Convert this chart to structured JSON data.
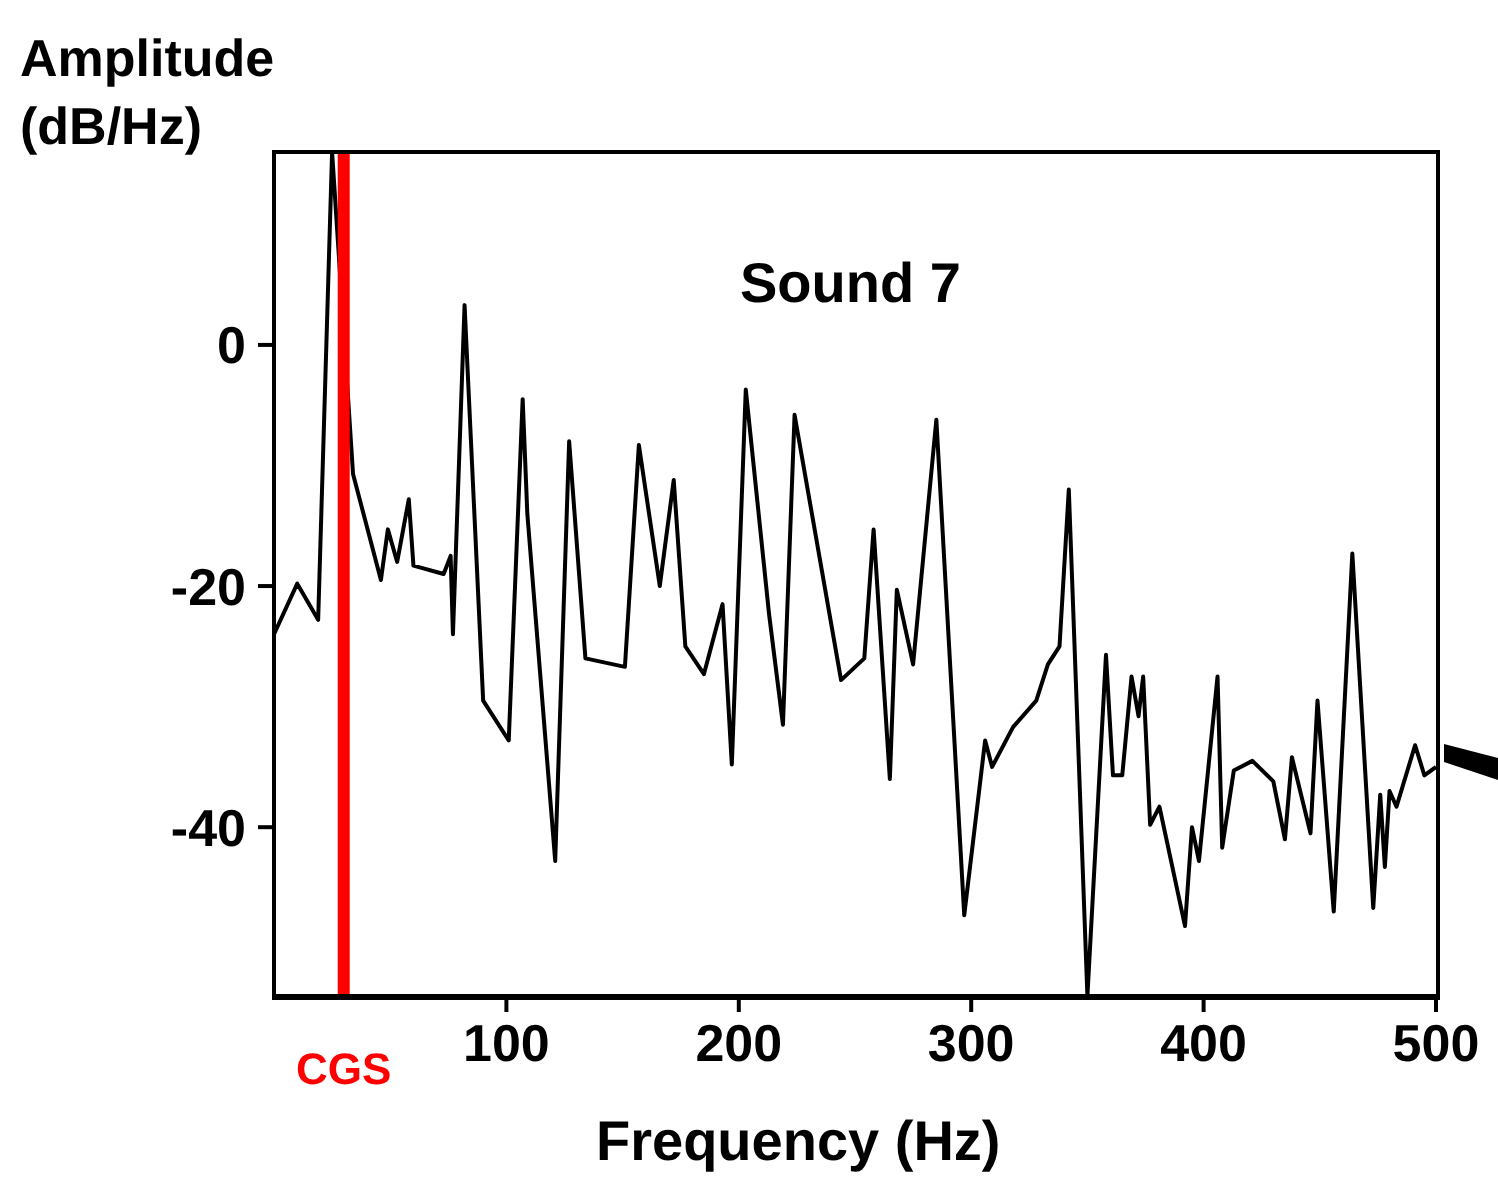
{
  "chart_data": {
    "type": "line",
    "title": "Sound 7",
    "xlabel": "Frequency (Hz)",
    "ylabel": "Amplitude\n(dB/Hz)",
    "x": [
      0,
      10,
      19,
      25,
      34,
      46,
      49,
      53,
      58,
      60,
      73,
      76,
      77,
      82,
      90,
      101,
      107,
      109,
      121,
      127,
      134,
      151,
      157,
      166,
      172,
      177,
      185,
      193,
      197,
      203,
      213,
      219,
      224,
      244,
      254,
      258,
      265,
      268,
      275,
      285,
      297,
      306,
      309,
      318,
      328,
      333,
      338,
      342,
      350,
      358,
      361,
      365,
      369,
      372,
      374,
      377,
      381,
      392,
      395,
      398,
      406,
      408,
      413,
      421,
      430,
      435,
      438,
      446,
      449,
      456,
      464,
      473,
      476,
      478,
      480,
      483,
      491,
      495,
      500
    ],
    "series": [
      {
        "color": "#000000",
        "values": [
          -24,
          -19.8,
          -22.8,
          16,
          -10.7,
          -19.5,
          -15.3,
          -18,
          -12.8,
          -18.3,
          -19,
          -17.5,
          -24,
          3.3,
          -29.5,
          -32.8,
          -4.5,
          -14,
          -42.8,
          -8,
          -26,
          -26.7,
          -8.3,
          -20,
          -11.2,
          -25,
          -27.3,
          -21.5,
          -34.8,
          -3.7,
          -22.3,
          -31.5,
          -5.8,
          -27.8,
          -26,
          -15.3,
          -36,
          -20.3,
          -26.5,
          -6.2,
          -47.3,
          -32.8,
          -35,
          -31.7,
          -29.5,
          -26.5,
          -25,
          -12,
          -54,
          -25.7,
          -35.7,
          -35.7,
          -27.5,
          -30.8,
          -27.5,
          -39.8,
          -38.3,
          -48.2,
          -40,
          -42.8,
          -27.5,
          -41.7,
          -35.3,
          -34.5,
          -36.2,
          -41,
          -34.2,
          -40.5,
          -29.5,
          -47,
          -17.3,
          -46.7,
          -37.3,
          -43.3,
          -37,
          -38.3,
          -33.2,
          -35.7,
          -35
        ]
      }
    ],
    "xlim": [
      0,
      500
    ],
    "xticks": [
      100,
      200,
      300,
      400,
      500
    ],
    "ylim": [
      -54,
      16
    ],
    "yticks": [
      0,
      -20,
      -40
    ],
    "ref_lines": [
      {
        "axis": "x",
        "value": 30,
        "label": "CGS",
        "color": "#ff0000"
      }
    ],
    "grid": false,
    "marker": "none",
    "line_style": "solid"
  }
}
